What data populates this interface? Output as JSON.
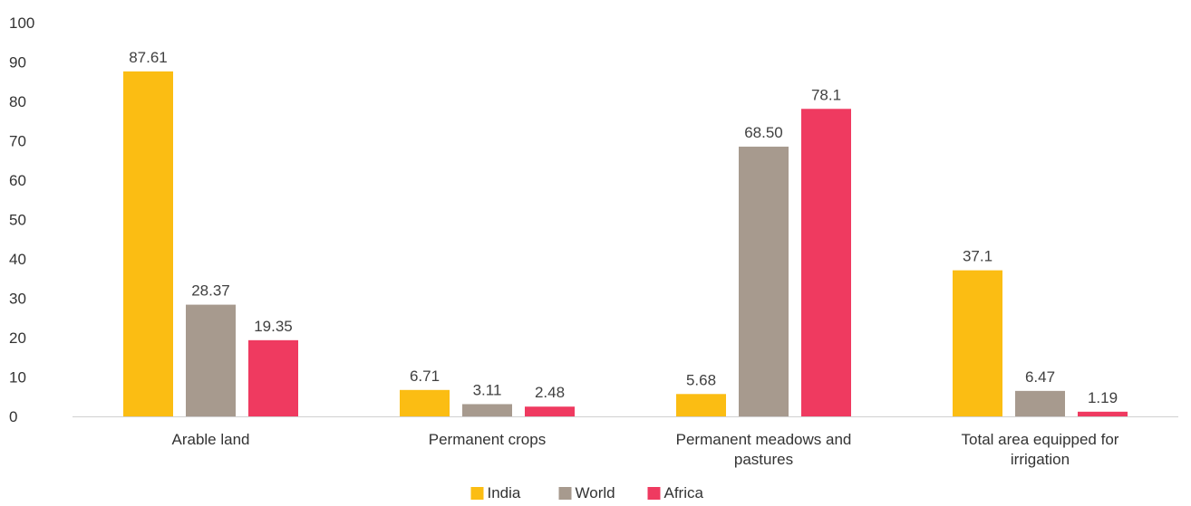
{
  "chart_data": {
    "type": "bar",
    "title": "",
    "xlabel": "",
    "ylabel": "",
    "ylim": [
      0,
      100
    ],
    "yticks": [
      0,
      10,
      20,
      30,
      40,
      50,
      60,
      70,
      80,
      90,
      100
    ],
    "categories": [
      [
        "Arable land"
      ],
      [
        "Permanent crops"
      ],
      [
        "Permanent meadows and",
        "pastures"
      ],
      [
        "Total area equipped for",
        "irrigation"
      ]
    ],
    "series": [
      {
        "name": "India",
        "color": "#FBBD13",
        "values": [
          87.61,
          6.71,
          5.68,
          37.1
        ],
        "labels": [
          "87.61",
          "6.71",
          "5.68",
          "37.1"
        ]
      },
      {
        "name": "World",
        "color": "#A79A8E",
        "values": [
          28.37,
          3.11,
          68.5,
          6.47
        ],
        "labels": [
          "28.37",
          "3.11",
          "68.50",
          "6.47"
        ]
      },
      {
        "name": "Africa",
        "color": "#EF3A60",
        "values": [
          19.35,
          2.48,
          78.1,
          1.19
        ],
        "labels": [
          "19.35",
          "2.48",
          "78.1",
          "1.19"
        ]
      }
    ],
    "grid": false,
    "legend": "bottom-center"
  }
}
